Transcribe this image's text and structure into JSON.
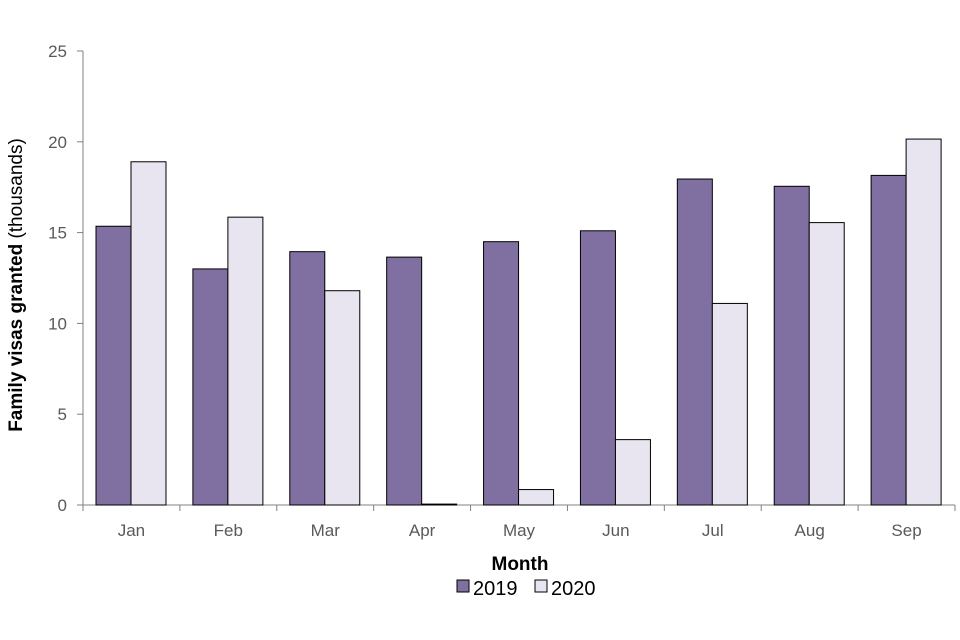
{
  "chart_data": {
    "type": "bar",
    "categories": [
      "Jan",
      "Feb",
      "Mar",
      "Apr",
      "May",
      "Jun",
      "Jul",
      "Aug",
      "Sep"
    ],
    "series": [
      {
        "name": "2019",
        "color": "#8070a2",
        "values": [
          15.35,
          13.0,
          13.95,
          13.65,
          14.5,
          15.1,
          17.95,
          17.55,
          18.15
        ]
      },
      {
        "name": "2020",
        "color": "#e8e5f0",
        "values": [
          18.9,
          15.85,
          11.8,
          0.05,
          0.85,
          3.6,
          11.1,
          15.55,
          20.15
        ]
      }
    ],
    "ylabel_bold": "Family visas granted",
    "ylabel_rest": " (thousands)",
    "xlabel": "Month",
    "ylim": [
      0,
      25
    ],
    "yticks": [
      0,
      5,
      10,
      15,
      20,
      25
    ],
    "grid": false,
    "legend_position": "bottom-center"
  }
}
